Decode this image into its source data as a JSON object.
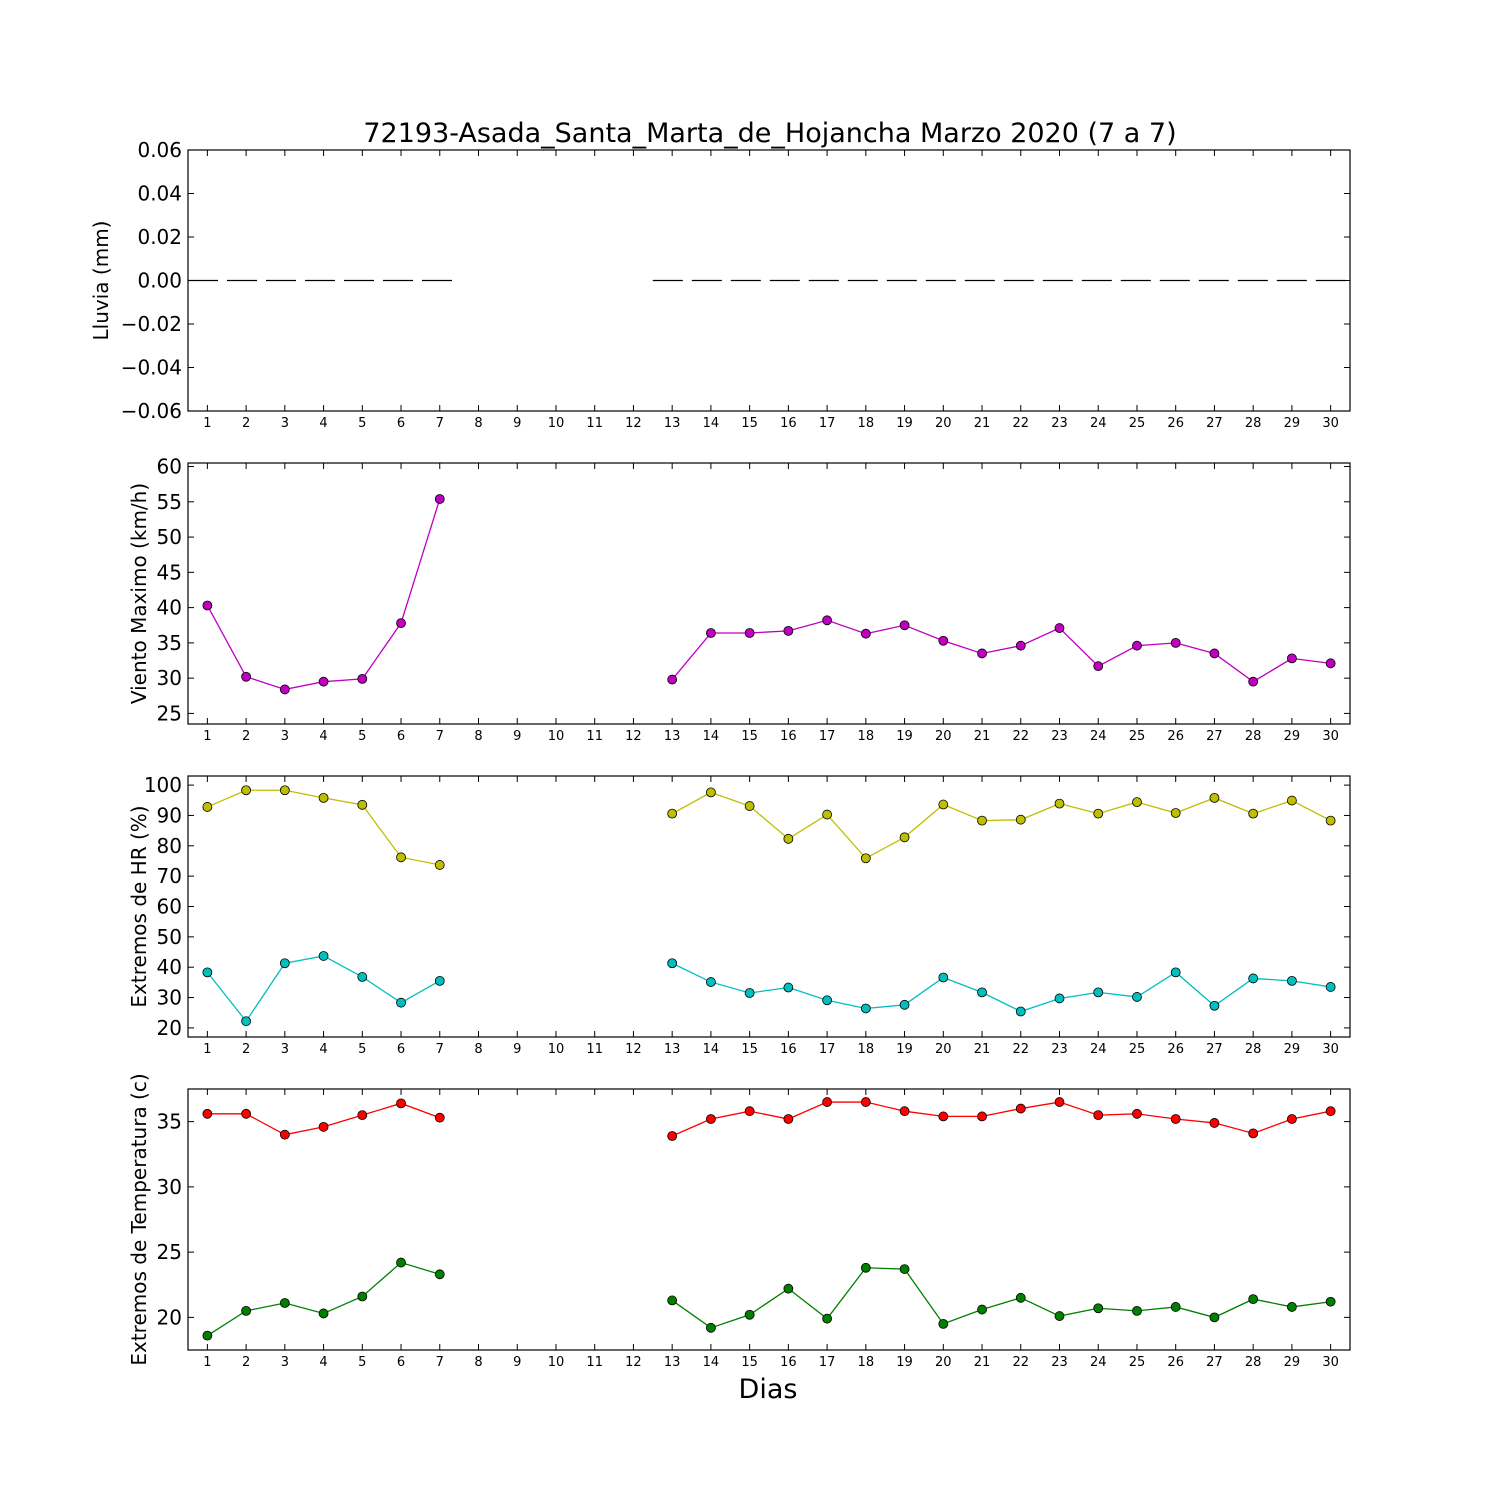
{
  "chart_data": {
    "title": "72193-Asada_Santa_Marta_de_Hojancha Marzo 2020  (7 a 7)",
    "xlabel": "Dias",
    "x": [
      1,
      2,
      3,
      4,
      5,
      6,
      7,
      8,
      9,
      10,
      11,
      12,
      13,
      14,
      15,
      16,
      17,
      18,
      19,
      20,
      21,
      22,
      23,
      24,
      25,
      26,
      27,
      28,
      29,
      30
    ],
    "x_tick_labels": [
      "1",
      "2",
      "3",
      "4",
      "5",
      "6",
      "7",
      "8",
      "9",
      "10",
      "11",
      "12",
      "13",
      "14",
      "15",
      "16",
      "17",
      "18",
      "19",
      "20",
      "21",
      "22",
      "23",
      "24",
      "25",
      "26",
      "27",
      "28",
      "29",
      "30"
    ],
    "panels": [
      {
        "type": "line",
        "ylabel": "Lluvia (mm)",
        "ylim": [
          -0.06,
          0.06
        ],
        "yticks": [
          -0.06,
          -0.04,
          -0.02,
          0.0,
          0.02,
          0.04,
          0.06
        ],
        "ytick_labels": [
          "−0.06",
          "−0.04",
          "−0.02",
          "0.00",
          "0.02",
          "0.04",
          "0.06"
        ],
        "series": [
          {
            "color": "#000000",
            "style": "dashed",
            "marker": false,
            "values": [
              0,
              0,
              0,
              0,
              0,
              0,
              0,
              null,
              null,
              null,
              null,
              null,
              0,
              0,
              0,
              0,
              0,
              0,
              0,
              0,
              0,
              0,
              0,
              0,
              0,
              0,
              0,
              0,
              0,
              0
            ]
          }
        ]
      },
      {
        "type": "line",
        "ylabel": "Viento Maximo (km/h)",
        "ylim": [
          23.5,
          60.5
        ],
        "yticks": [
          25,
          30,
          35,
          40,
          45,
          50,
          55,
          60
        ],
        "ytick_labels": [
          "25",
          "30",
          "35",
          "40",
          "45",
          "50",
          "55",
          "60"
        ],
        "series": [
          {
            "color": "#bf00bf",
            "marker": true,
            "values": [
              40.3,
              30.2,
              28.4,
              29.5,
              29.9,
              37.8,
              55.4,
              null,
              null,
              null,
              null,
              null,
              29.8,
              36.4,
              36.4,
              36.7,
              38.2,
              36.3,
              37.5,
              35.3,
              33.5,
              34.6,
              37.1,
              31.7,
              34.6,
              35.0,
              33.5,
              29.5,
              32.8,
              32.1
            ]
          }
        ]
      },
      {
        "type": "line",
        "ylabel": "Extremos de HR (%)",
        "ylim": [
          17,
          103
        ],
        "yticks": [
          20,
          30,
          40,
          50,
          60,
          70,
          80,
          90,
          100
        ],
        "ytick_labels": [
          "20",
          "30",
          "40",
          "50",
          "60",
          "70",
          "80",
          "90",
          "100"
        ],
        "series": [
          {
            "color": "#bfbf00",
            "marker": true,
            "values": [
              92.8,
              98.3,
              98.3,
              95.8,
              93.5,
              76.2,
              73.7,
              null,
              null,
              null,
              null,
              null,
              90.6,
              97.6,
              93.1,
              82.3,
              90.3,
              75.9,
              82.8,
              93.6,
              88.3,
              88.6,
              93.9,
              90.6,
              94.4,
              90.8,
              95.8,
              90.6,
              94.9,
              88.3
            ]
          },
          {
            "color": "#00bfbf",
            "marker": true,
            "values": [
              38.3,
              22.2,
              41.3,
              43.7,
              36.8,
              28.3,
              35.5,
              null,
              null,
              null,
              null,
              null,
              41.3,
              35.1,
              31.5,
              33.3,
              29.1,
              26.4,
              27.6,
              36.6,
              31.7,
              25.4,
              29.7,
              31.7,
              30.2,
              38.3,
              27.3,
              36.3,
              35.5,
              33.5
            ]
          }
        ]
      },
      {
        "type": "line",
        "ylabel": "Extremos de Temperatura (c)",
        "ylim": [
          17.5,
          37.5
        ],
        "yticks": [
          20,
          25,
          30,
          35
        ],
        "ytick_labels": [
          "20",
          "25",
          "30",
          "35"
        ],
        "series": [
          {
            "color": "#ff0000",
            "marker": true,
            "values": [
              35.6,
              35.6,
              34.0,
              34.6,
              35.5,
              36.4,
              35.3,
              null,
              null,
              null,
              null,
              null,
              33.9,
              35.2,
              35.8,
              35.2,
              36.5,
              36.5,
              35.8,
              35.4,
              35.4,
              36.0,
              36.5,
              35.5,
              35.6,
              35.2,
              34.9,
              34.1,
              35.2,
              35.8
            ]
          },
          {
            "color": "#007f00",
            "marker": true,
            "values": [
              18.6,
              20.5,
              21.1,
              20.3,
              21.6,
              24.2,
              23.3,
              null,
              null,
              null,
              null,
              null,
              21.3,
              19.2,
              20.2,
              22.2,
              19.9,
              23.8,
              23.7,
              19.5,
              20.6,
              21.5,
              20.1,
              20.7,
              20.5,
              20.8,
              20.0,
              21.4,
              20.8,
              21.2
            ]
          }
        ]
      }
    ]
  }
}
